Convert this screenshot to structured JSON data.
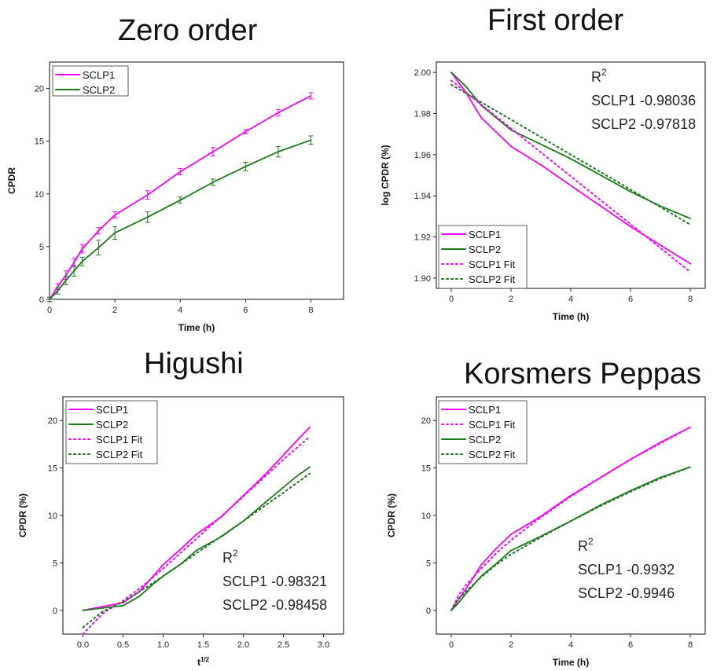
{
  "chart_data": [
    {
      "type": "line",
      "title": "Zero order",
      "xlabel": "Time (h)",
      "ylabel": "CPDR",
      "xlim": [
        0,
        9
      ],
      "ylim": [
        0,
        22.5
      ],
      "xticks": [
        0,
        2,
        4,
        6,
        8
      ],
      "yticks": [
        0,
        5,
        10,
        15,
        20
      ],
      "legend_position": "top-left",
      "annotation": [],
      "series": [
        {
          "name": "SCLP1",
          "color": "#ff00ff",
          "style": "solid",
          "error_bars": true,
          "x": [
            0,
            0.25,
            0.5,
            0.75,
            1,
            1.5,
            2,
            3,
            4,
            5,
            6,
            7,
            8
          ],
          "y": [
            0,
            1.2,
            2.3,
            3.5,
            4.8,
            6.5,
            8.0,
            9.9,
            12.1,
            14.0,
            15.9,
            17.7,
            19.3
          ],
          "err": [
            0.2,
            0.3,
            0.4,
            0.4,
            0.4,
            0.3,
            0.3,
            0.4,
            0.3,
            0.4,
            0.2,
            0.3,
            0.3
          ]
        },
        {
          "name": "SCLP2",
          "color": "#1a7a1a",
          "style": "solid",
          "error_bars": true,
          "x": [
            0,
            0.25,
            0.5,
            0.75,
            1,
            1.5,
            2,
            3,
            4,
            5,
            6,
            7,
            8
          ],
          "y": [
            0,
            0.8,
            1.8,
            2.7,
            3.6,
            4.9,
            6.3,
            7.8,
            9.4,
            11.1,
            12.6,
            14.0,
            15.1
          ],
          "err": [
            0.2,
            0.3,
            0.4,
            0.5,
            0.4,
            0.7,
            0.6,
            0.5,
            0.3,
            0.3,
            0.4,
            0.5,
            0.4
          ]
        }
      ]
    },
    {
      "type": "line",
      "title": "First order",
      "xlabel": "Time (h)",
      "ylabel": "log CPDR (%)",
      "xlim": [
        -0.5,
        8.5
      ],
      "ylim": [
        1.895,
        2.005
      ],
      "xticks": [
        0,
        2,
        4,
        6,
        8
      ],
      "yticks": [
        1.9,
        1.92,
        1.94,
        1.96,
        1.98,
        2.0
      ],
      "legend_position": "bottom-left",
      "annotation": [
        "R",
        "2",
        "SCLP1 -0.98036",
        "SCLP2 -0.97818"
      ],
      "series": [
        {
          "name": "SCLP1",
          "color": "#ff00ff",
          "style": "solid",
          "x": [
            0,
            0.5,
            1,
            2,
            3,
            4,
            5,
            6,
            7,
            8
          ],
          "y": [
            2.0,
            1.99,
            1.978,
            1.964,
            1.955,
            1.945,
            1.935,
            1.925,
            1.916,
            1.907
          ]
        },
        {
          "name": "SCLP2",
          "color": "#1a7a1a",
          "style": "solid",
          "x": [
            0,
            0.5,
            1,
            2,
            3,
            4,
            5,
            6,
            7,
            8
          ],
          "y": [
            2.0,
            1.993,
            1.984,
            1.972,
            1.965,
            1.958,
            1.95,
            1.942,
            1.935,
            1.929
          ]
        },
        {
          "name": "SCLP1 Fit",
          "color": "#ff00ff",
          "style": "dotted",
          "x": [
            0,
            8
          ],
          "y": [
            1.996,
            1.903
          ]
        },
        {
          "name": "SCLP2 Fit",
          "color": "#1a7a1a",
          "style": "dotted",
          "x": [
            0,
            8
          ],
          "y": [
            1.994,
            1.926
          ]
        }
      ]
    },
    {
      "type": "line",
      "title": "Higushi",
      "xlabel": "t",
      "xlabel_sup": "1/2",
      "ylabel": "CPDR (%)",
      "xlim": [
        -0.25,
        3.25
      ],
      "ylim": [
        -2.5,
        22.5
      ],
      "xticks": [
        0.0,
        0.5,
        1.0,
        1.5,
        2.0,
        2.5,
        3.0
      ],
      "xtick_labels": [
        "0.0",
        "0.5",
        "1.0",
        "1.5",
        "2.0",
        "2.5",
        "3.0"
      ],
      "yticks": [
        0,
        5,
        10,
        15,
        20
      ],
      "legend_position": "top-left",
      "annotation": [
        "R",
        "2",
        "SCLP1 -0.98321",
        "SCLP2 -0.98458"
      ],
      "series": [
        {
          "name": "SCLP1",
          "color": "#ff00ff",
          "style": "solid",
          "x": [
            0,
            0.5,
            0.707,
            0.866,
            1.0,
            1.225,
            1.414,
            1.732,
            2.0,
            2.236,
            2.449,
            2.646,
            2.828
          ],
          "y": [
            0,
            0.8,
            2.0,
            3.5,
            4.8,
            6.5,
            8.0,
            9.9,
            12.1,
            14.0,
            15.9,
            17.7,
            19.3
          ]
        },
        {
          "name": "SCLP2",
          "color": "#1a7a1a",
          "style": "solid",
          "x": [
            0,
            0.5,
            0.707,
            0.866,
            1.0,
            1.225,
            1.414,
            1.732,
            2.0,
            2.236,
            2.449,
            2.646,
            2.828
          ],
          "y": [
            0,
            0.5,
            1.5,
            2.7,
            3.6,
            4.9,
            6.3,
            7.8,
            9.4,
            11.1,
            12.6,
            14.0,
            15.1
          ]
        },
        {
          "name": "SCLP1 Fit",
          "color": "#ff00ff",
          "style": "dotted",
          "x": [
            0,
            0.25,
            0.5,
            0.75,
            1.0,
            1.5,
            2.0,
            2.5,
            2.828
          ],
          "y": [
            -2.5,
            -0.3,
            1.0,
            2.6,
            4.4,
            8.2,
            12.0,
            15.9,
            18.3
          ]
        },
        {
          "name": "SCLP2 Fit",
          "color": "#1a7a1a",
          "style": "dotted",
          "x": [
            0,
            0.25,
            0.5,
            0.75,
            1.0,
            1.5,
            2.0,
            2.5,
            2.828
          ],
          "y": [
            -1.8,
            -0.1,
            0.9,
            2.2,
            3.6,
            6.5,
            9.4,
            12.4,
            14.4
          ]
        }
      ]
    },
    {
      "type": "line",
      "title": "Korsmers Peppas",
      "xlabel": "Time (h)",
      "ylabel": "CPDR (%)",
      "xlim": [
        -0.5,
        8.5
      ],
      "ylim": [
        -2.5,
        22.5
      ],
      "xticks": [
        0,
        2,
        4,
        6,
        8
      ],
      "yticks": [
        0,
        5,
        10,
        15,
        20
      ],
      "legend_position": "top-left",
      "annotation": [
        "R",
        "2",
        "SCLP1 -0.9932",
        "SCLP2 -0.9946"
      ],
      "series": [
        {
          "name": "SCLP1",
          "color": "#ff00ff",
          "style": "solid",
          "x": [
            0,
            0.25,
            0.5,
            0.75,
            1,
            1.5,
            2,
            3,
            4,
            5,
            6,
            7,
            8
          ],
          "y": [
            0,
            1.2,
            2.3,
            3.5,
            4.8,
            6.5,
            8.0,
            9.9,
            12.1,
            14.0,
            15.9,
            17.7,
            19.3
          ]
        },
        {
          "name": "SCLP1 Fit",
          "color": "#ff00ff",
          "style": "dotted",
          "x": [
            0,
            0.25,
            0.5,
            1,
            1.5,
            2,
            3,
            4,
            5,
            6,
            7,
            8
          ],
          "y": [
            0,
            1.6,
            2.7,
            4.4,
            6.0,
            7.4,
            9.8,
            12.0,
            14.0,
            15.9,
            17.6,
            19.3
          ]
        },
        {
          "name": "SCLP2",
          "color": "#1a7a1a",
          "style": "solid",
          "x": [
            0,
            0.25,
            0.5,
            0.75,
            1,
            1.5,
            2,
            3,
            4,
            5,
            6,
            7,
            8
          ],
          "y": [
            0,
            0.8,
            1.8,
            2.7,
            3.6,
            4.9,
            6.3,
            7.8,
            9.4,
            11.1,
            12.6,
            14.0,
            15.1
          ]
        },
        {
          "name": "SCLP2 Fit",
          "color": "#1a7a1a",
          "style": "dotted",
          "x": [
            0,
            0.25,
            0.5,
            1,
            1.5,
            2,
            3,
            4,
            5,
            6,
            7,
            8
          ],
          "y": [
            0,
            1.2,
            2.0,
            3.5,
            4.8,
            5.9,
            7.7,
            9.4,
            11.0,
            12.5,
            13.9,
            15.1
          ]
        }
      ]
    }
  ]
}
